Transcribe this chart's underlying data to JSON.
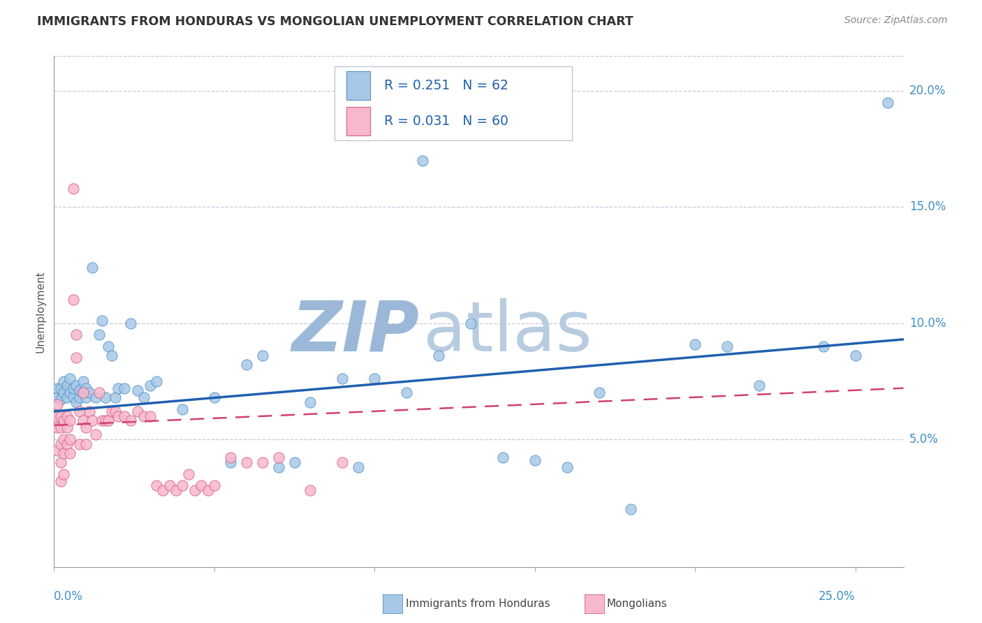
{
  "title": "IMMIGRANTS FROM HONDURAS VS MONGOLIAN UNEMPLOYMENT CORRELATION CHART",
  "source": "Source: ZipAtlas.com",
  "ylabel": "Unemployment",
  "xlim": [
    0.0,
    0.265
  ],
  "ylim": [
    -0.005,
    0.215
  ],
  "blue_color": "#a8c8e8",
  "blue_edge_color": "#5090c0",
  "pink_color": "#f8b8cc",
  "pink_edge_color": "#d06080",
  "blue_line_color": "#2060b0",
  "pink_line_color": "#d04070",
  "tick_label_color": "#4090c8",
  "watermark_zip_color": "#9bb8d8",
  "watermark_atlas_color": "#b8cce0",
  "grid_color": "#c8c8d8",
  "yticks": [
    0.05,
    0.1,
    0.15,
    0.2
  ],
  "ytick_labels": [
    "5.0%",
    "10.0%",
    "15.0%",
    "20.0%"
  ],
  "scatter_blue_x": [
    0.001,
    0.001,
    0.002,
    0.002,
    0.003,
    0.003,
    0.004,
    0.004,
    0.005,
    0.005,
    0.006,
    0.006,
    0.007,
    0.007,
    0.008,
    0.008,
    0.009,
    0.009,
    0.01,
    0.01,
    0.011,
    0.012,
    0.013,
    0.014,
    0.015,
    0.016,
    0.017,
    0.018,
    0.019,
    0.02,
    0.022,
    0.024,
    0.026,
    0.028,
    0.03,
    0.032,
    0.04,
    0.05,
    0.06,
    0.065,
    0.07,
    0.08,
    0.09,
    0.1,
    0.11,
    0.12,
    0.13,
    0.14,
    0.15,
    0.16,
    0.17,
    0.18,
    0.2,
    0.21,
    0.22,
    0.24,
    0.25,
    0.26,
    0.115,
    0.055,
    0.075,
    0.095
  ],
  "scatter_blue_y": [
    0.068,
    0.072,
    0.072,
    0.067,
    0.07,
    0.075,
    0.068,
    0.073,
    0.07,
    0.076,
    0.068,
    0.072,
    0.066,
    0.073,
    0.068,
    0.071,
    0.07,
    0.075,
    0.068,
    0.072,
    0.07,
    0.124,
    0.068,
    0.095,
    0.101,
    0.068,
    0.09,
    0.086,
    0.068,
    0.072,
    0.072,
    0.1,
    0.071,
    0.068,
    0.073,
    0.075,
    0.063,
    0.068,
    0.082,
    0.086,
    0.038,
    0.066,
    0.076,
    0.076,
    0.07,
    0.086,
    0.1,
    0.042,
    0.041,
    0.038,
    0.07,
    0.02,
    0.091,
    0.09,
    0.073,
    0.09,
    0.086,
    0.195,
    0.17,
    0.04,
    0.04,
    0.038
  ],
  "scatter_pink_x": [
    0.001,
    0.001,
    0.001,
    0.001,
    0.002,
    0.002,
    0.002,
    0.002,
    0.002,
    0.003,
    0.003,
    0.003,
    0.003,
    0.004,
    0.004,
    0.004,
    0.005,
    0.005,
    0.005,
    0.006,
    0.006,
    0.007,
    0.007,
    0.008,
    0.008,
    0.009,
    0.009,
    0.01,
    0.01,
    0.011,
    0.012,
    0.013,
    0.014,
    0.015,
    0.016,
    0.017,
    0.018,
    0.019,
    0.02,
    0.022,
    0.024,
    0.026,
    0.028,
    0.03,
    0.032,
    0.034,
    0.036,
    0.038,
    0.04,
    0.042,
    0.044,
    0.046,
    0.048,
    0.05,
    0.055,
    0.06,
    0.065,
    0.07,
    0.08,
    0.09
  ],
  "scatter_pink_y": [
    0.065,
    0.06,
    0.055,
    0.045,
    0.06,
    0.055,
    0.048,
    0.04,
    0.032,
    0.058,
    0.05,
    0.044,
    0.035,
    0.06,
    0.055,
    0.048,
    0.058,
    0.05,
    0.044,
    0.158,
    0.11,
    0.095,
    0.085,
    0.062,
    0.048,
    0.07,
    0.058,
    0.055,
    0.048,
    0.062,
    0.058,
    0.052,
    0.07,
    0.058,
    0.058,
    0.058,
    0.062,
    0.062,
    0.06,
    0.06,
    0.058,
    0.062,
    0.06,
    0.06,
    0.03,
    0.028,
    0.03,
    0.028,
    0.03,
    0.035,
    0.028,
    0.03,
    0.028,
    0.03,
    0.042,
    0.04,
    0.04,
    0.042,
    0.028,
    0.04
  ],
  "blue_trend_x0": 0.0,
  "blue_trend_x1": 0.265,
  "blue_trend_y0": 0.062,
  "blue_trend_y1": 0.093,
  "pink_trend_x0": 0.0,
  "pink_trend_x1": 0.265,
  "pink_trend_y0": 0.056,
  "pink_trend_y1": 0.072
}
